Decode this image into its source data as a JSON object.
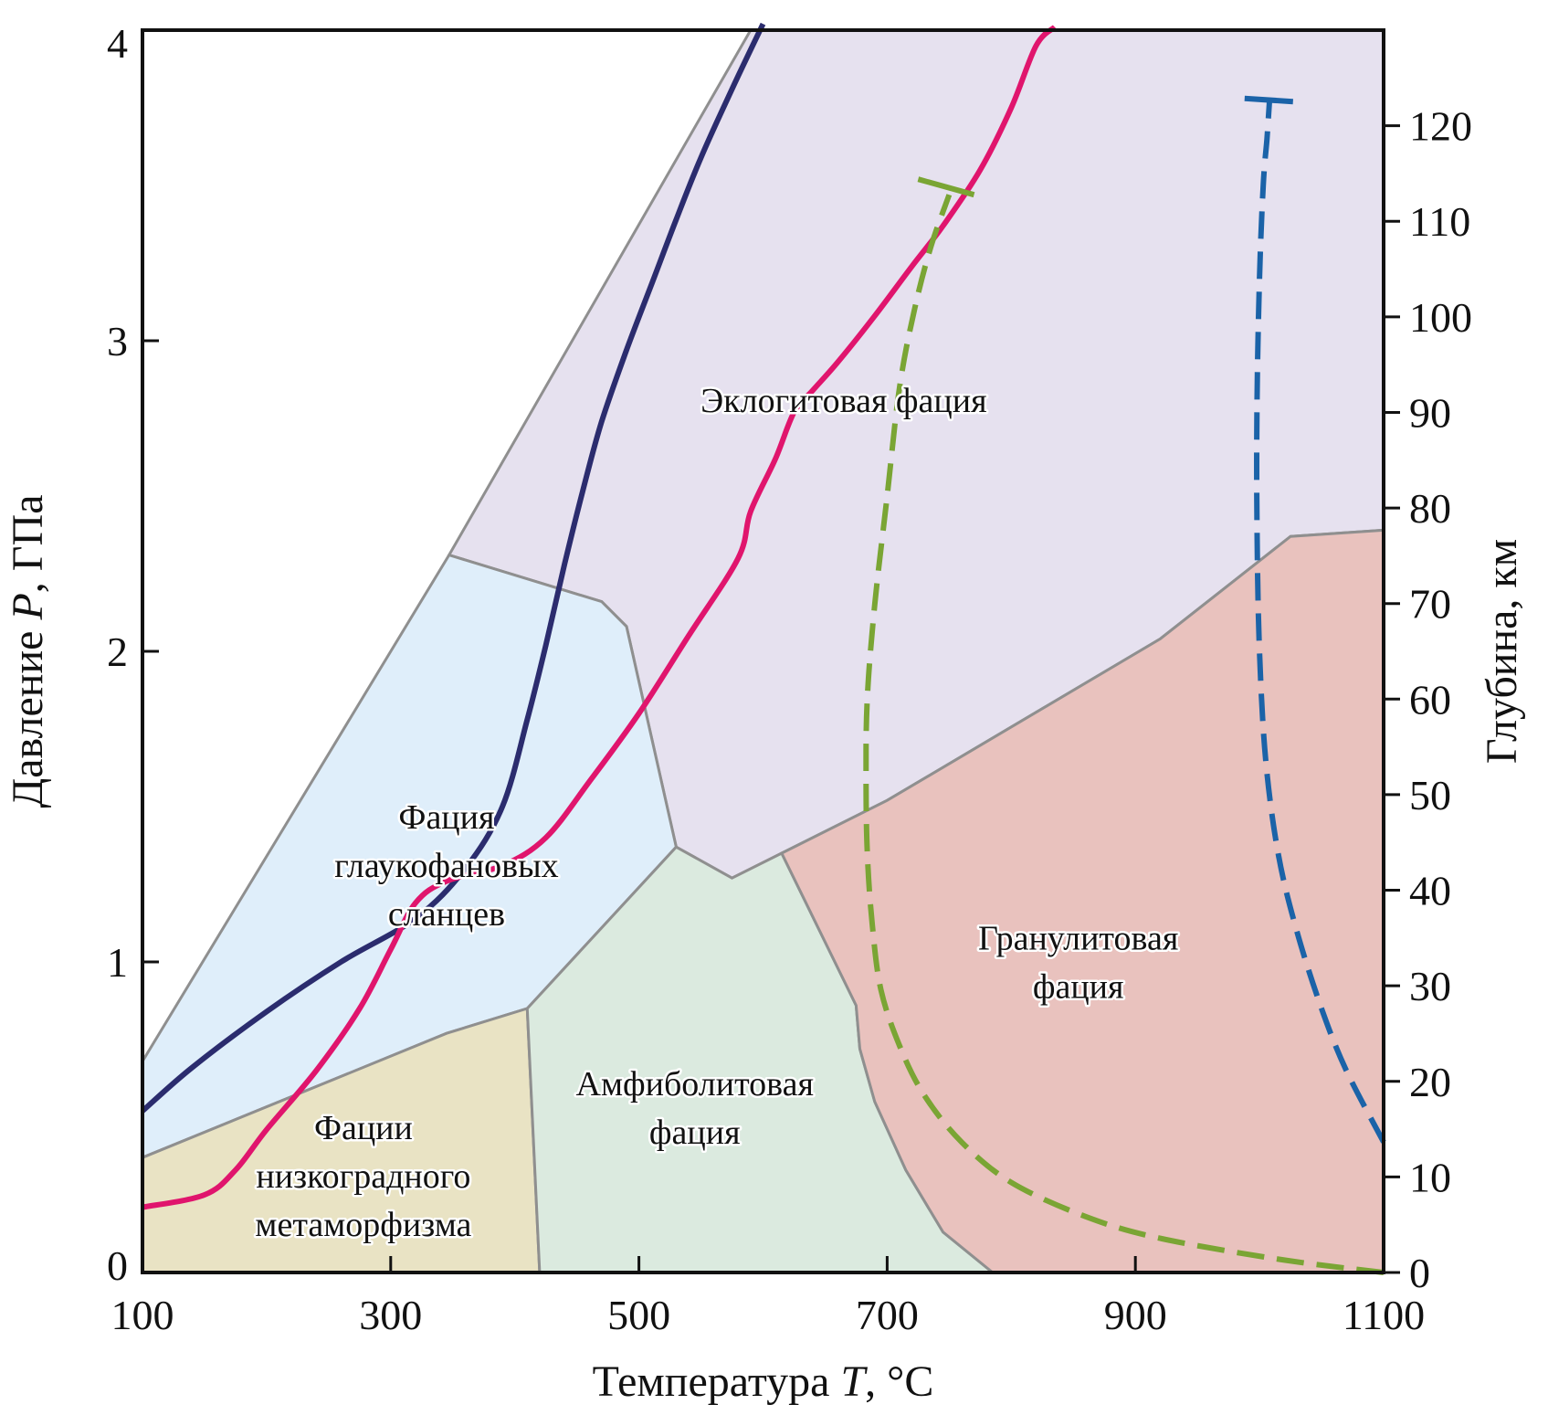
{
  "chart_data": {
    "type": "area",
    "xlabel": {
      "prefix": "Температура ",
      "var": "T",
      "suffix": ", °C"
    },
    "ylabel": {
      "prefix": "Давление ",
      "var": "P",
      "suffix": ", ГПа"
    },
    "y2label": "Глубина, км",
    "xlim": [
      100,
      1100
    ],
    "ylim": [
      0,
      4
    ],
    "y2lim": [
      0,
      130
    ],
    "xticks": [
      100,
      300,
      500,
      700,
      900,
      1100
    ],
    "yticks": [
      0,
      1,
      2,
      3,
      4
    ],
    "y2ticks": [
      0,
      10,
      20,
      30,
      40,
      50,
      60,
      70,
      80,
      90,
      100,
      110,
      120
    ],
    "regions": [
      {
        "id": "eclogite",
        "label": [
          "Эклогитовая фация"
        ],
        "color": "#e6e1ef",
        "label_at": [
          665,
          2.77
        ],
        "polygon": [
          [
            347,
            2.31
          ],
          [
            590,
            4.0
          ],
          [
            1100,
            4.0
          ],
          [
            1100,
            2.39
          ],
          [
            1025,
            2.37
          ],
          [
            920,
            2.04
          ],
          [
            700,
            1.52
          ],
          [
            615,
            1.35
          ],
          [
            575,
            1.27
          ],
          [
            530,
            1.37
          ],
          [
            490,
            2.08
          ],
          [
            470,
            2.16
          ]
        ]
      },
      {
        "id": "blueschist",
        "label": [
          "Фация",
          "глаукофановых",
          "сланцев"
        ],
        "color": "#dfeefa",
        "label_at": [
          345,
          1.43
        ],
        "polygon": [
          [
            100,
            0.68
          ],
          [
            347,
            2.31
          ],
          [
            470,
            2.16
          ],
          [
            490,
            2.08
          ],
          [
            530,
            1.37
          ],
          [
            410,
            0.85
          ],
          [
            345,
            0.77
          ],
          [
            100,
            0.37
          ]
        ]
      },
      {
        "id": "lowgrade",
        "label": [
          "Фации",
          "низкоградного",
          "метаморфизма"
        ],
        "color": "#e9e3c4",
        "label_at": [
          278,
          0.43
        ],
        "polygon": [
          [
            100,
            0.37
          ],
          [
            345,
            0.77
          ],
          [
            410,
            0.85
          ],
          [
            420,
            0.0
          ],
          [
            100,
            0.0
          ]
        ]
      },
      {
        "id": "amphibolite",
        "label": [
          "Амфиболитовая",
          "фация"
        ],
        "color": "#dbeadf",
        "label_at": [
          545,
          0.57
        ],
        "polygon": [
          [
            410,
            0.85
          ],
          [
            530,
            1.37
          ],
          [
            575,
            1.27
          ],
          [
            615,
            1.35
          ],
          [
            675,
            0.86
          ],
          [
            678,
            0.72
          ],
          [
            690,
            0.55
          ],
          [
            715,
            0.33
          ],
          [
            745,
            0.13
          ],
          [
            785,
            0.0
          ],
          [
            420,
            0.0
          ]
        ]
      },
      {
        "id": "granulite",
        "label": [
          "Гранулитовая",
          "фация"
        ],
        "color": "#e9c2be",
        "label_at": [
          854,
          1.04
        ],
        "polygon": [
          [
            615,
            1.35
          ],
          [
            700,
            1.52
          ],
          [
            920,
            2.04
          ],
          [
            1025,
            2.37
          ],
          [
            1100,
            2.39
          ],
          [
            1100,
            0.0
          ],
          [
            785,
            0.0
          ],
          [
            745,
            0.13
          ],
          [
            715,
            0.33
          ],
          [
            690,
            0.55
          ],
          [
            678,
            0.72
          ],
          [
            675,
            0.86
          ]
        ]
      }
    ],
    "series": [
      {
        "id": "navy",
        "color": "#2b2c6e",
        "dash": "",
        "x": [
          100,
          140,
          200,
          260,
          320,
          360,
          390,
          410,
          425,
          440,
          455,
          470,
          490,
          510,
          530,
          550,
          575,
          600
        ],
        "y": [
          0.52,
          0.66,
          0.84,
          1.0,
          1.14,
          1.3,
          1.5,
          1.78,
          2.02,
          2.28,
          2.52,
          2.74,
          2.97,
          3.18,
          3.39,
          3.59,
          3.81,
          4.02
        ]
      },
      {
        "id": "magenta",
        "color": "#e0156d",
        "dash": "",
        "x": [
          100,
          150,
          175,
          200,
          240,
          275,
          300,
          320,
          345,
          390,
          425,
          460,
          500,
          540,
          580,
          590,
          610,
          625,
          640,
          660,
          690,
          720,
          745,
          775,
          800,
          820,
          835
        ],
        "y": [
          0.21,
          0.25,
          0.33,
          0.46,
          0.65,
          0.85,
          1.04,
          1.19,
          1.26,
          1.31,
          1.4,
          1.58,
          1.8,
          2.05,
          2.3,
          2.45,
          2.62,
          2.77,
          2.84,
          2.93,
          3.08,
          3.24,
          3.37,
          3.55,
          3.75,
          3.95,
          4.01
        ]
      },
      {
        "id": "green",
        "color": "#7aa534",
        "dash": "30,14",
        "x": [
          1100,
          1020,
          920,
          860,
          800,
          760,
          730,
          710,
          695,
          688,
          684,
          683,
          684,
          690,
          700,
          710,
          722,
          735,
          750
        ],
        "y": [
          0.0,
          0.04,
          0.11,
          0.18,
          0.29,
          0.42,
          0.57,
          0.73,
          0.91,
          1.12,
          1.35,
          1.6,
          1.85,
          2.15,
          2.5,
          2.85,
          3.1,
          3.3,
          3.47
        ]
      },
      {
        "id": "blue",
        "color": "#1b63a8",
        "dash": "30,14",
        "x": [
          1100,
          1070,
          1050,
          1030,
          1015,
          1005,
          1000,
          998,
          998,
          1000,
          1003,
          1006,
          1008
        ],
        "y": [
          0.42,
          0.65,
          0.85,
          1.1,
          1.35,
          1.65,
          2.0,
          2.4,
          2.8,
          3.2,
          3.5,
          3.65,
          3.77
        ]
      }
    ],
    "endcaps": [
      {
        "series": "green",
        "from": [
          725,
          3.52
        ],
        "to": [
          770,
          3.47
        ]
      },
      {
        "series": "blue",
        "from": [
          988,
          3.78
        ],
        "to": [
          1027,
          3.77
        ]
      }
    ]
  }
}
